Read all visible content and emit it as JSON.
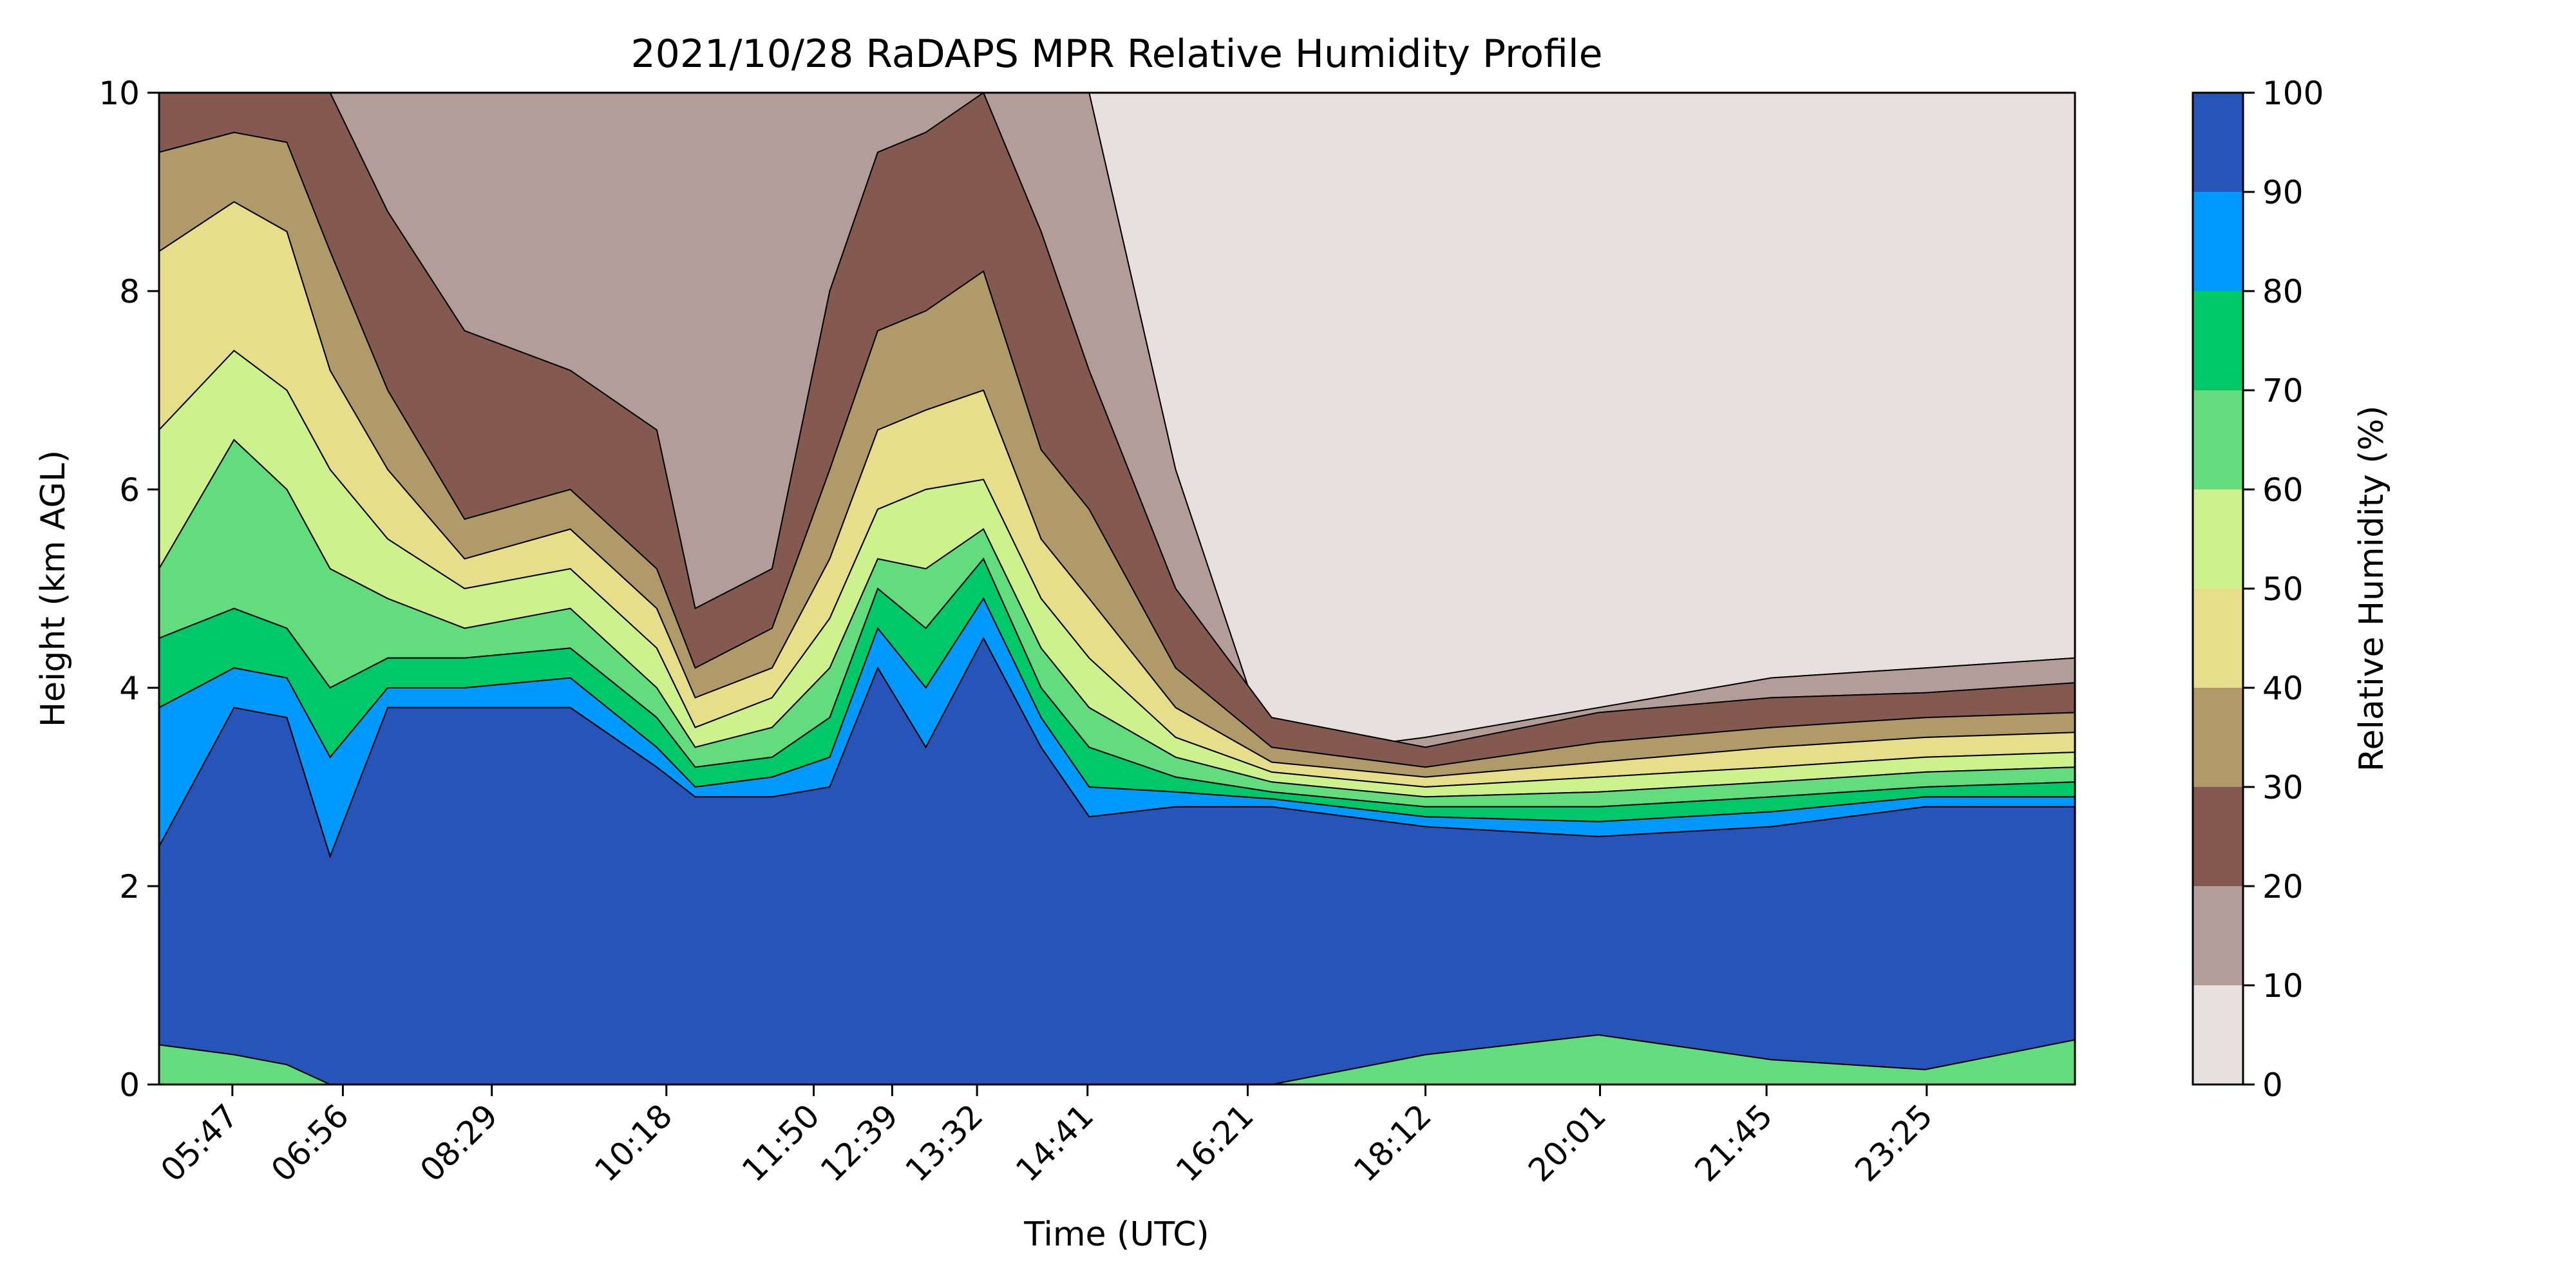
{
  "chart_data": {
    "type": "heatmap",
    "subtype": "filled-contour",
    "title": "2021/10/28 RaDAPS MPR Relative Humidity Profile",
    "xlabel": "Time (UTC)",
    "ylabel": "Height (km AGL)",
    "x_tick_labels": [
      "05:47",
      "06:56",
      "08:29",
      "10:18",
      "11:50",
      "12:39",
      "13:32",
      "14:41",
      "16:21",
      "18:12",
      "20:01",
      "21:45",
      "23:25"
    ],
    "x_tick_hours": [
      5.783,
      6.933,
      8.483,
      10.3,
      11.833,
      12.65,
      13.533,
      14.683,
      16.35,
      18.2,
      20.017,
      21.75,
      23.417
    ],
    "xlim_hours": [
      5.02,
      24.96
    ],
    "y_ticks": [
      0,
      2,
      4,
      6,
      8,
      10
    ],
    "ylim": [
      0,
      10
    ],
    "colorbar": {
      "label": "Relative Humidity (%)",
      "levels": [
        0,
        10,
        20,
        30,
        40,
        50,
        60,
        70,
        80,
        90,
        100
      ],
      "colors": [
        "#e8e0df",
        "#b39d98",
        "#84594f",
        "#b09a69",
        "#e6de8a",
        "#cdf18c",
        "#62dc7d",
        "#00c768",
        "#0099ff",
        "#2654b8"
      ]
    },
    "profiles": [
      {
        "time": 5.02,
        "boundaries": [
          0.4,
          2.4,
          3.8,
          4.5,
          5.2,
          6.6,
          8.4,
          9.4,
          10,
          10
        ]
      },
      {
        "time": 5.8,
        "boundaries": [
          0.3,
          3.8,
          4.2,
          4.8,
          6.5,
          7.4,
          8.9,
          9.6,
          10,
          10
        ]
      },
      {
        "time": 6.35,
        "boundaries": [
          0.2,
          3.7,
          4.1,
          4.6,
          6.0,
          7.0,
          8.6,
          9.5,
          10,
          10
        ]
      },
      {
        "time": 6.8,
        "boundaries": [
          0.0,
          2.3,
          3.3,
          4.0,
          5.2,
          6.2,
          7.2,
          8.4,
          10,
          10
        ]
      },
      {
        "time": 7.4,
        "boundaries": [
          0.0,
          3.8,
          4.0,
          4.3,
          4.9,
          5.5,
          6.2,
          7.0,
          8.8,
          10
        ]
      },
      {
        "time": 8.2,
        "boundaries": [
          0.0,
          3.8,
          4.0,
          4.3,
          4.6,
          5.0,
          5.3,
          5.7,
          7.6,
          10
        ]
      },
      {
        "time": 9.3,
        "boundaries": [
          0.0,
          3.8,
          4.1,
          4.4,
          4.8,
          5.2,
          5.6,
          6.0,
          7.2,
          10
        ]
      },
      {
        "time": 10.2,
        "boundaries": [
          0.0,
          3.2,
          3.4,
          3.7,
          4.0,
          4.4,
          4.8,
          5.2,
          6.6,
          10
        ]
      },
      {
        "time": 10.6,
        "boundaries": [
          0.0,
          2.9,
          3.0,
          3.2,
          3.4,
          3.6,
          3.9,
          4.2,
          4.8,
          10
        ]
      },
      {
        "time": 11.4,
        "boundaries": [
          0.0,
          2.9,
          3.1,
          3.3,
          3.6,
          3.9,
          4.2,
          4.6,
          5.2,
          10
        ]
      },
      {
        "time": 12.0,
        "boundaries": [
          0.0,
          3.0,
          3.3,
          3.7,
          4.2,
          4.7,
          5.3,
          6.2,
          8.0,
          10
        ]
      },
      {
        "time": 12.5,
        "boundaries": [
          0.0,
          4.2,
          4.6,
          5.0,
          5.3,
          5.8,
          6.6,
          7.6,
          9.4,
          10
        ]
      },
      {
        "time": 13.0,
        "boundaries": [
          0.0,
          3.4,
          4.0,
          4.6,
          5.2,
          6.0,
          6.8,
          7.8,
          9.6,
          10
        ]
      },
      {
        "time": 13.6,
        "boundaries": [
          0.0,
          4.5,
          4.9,
          5.3,
          5.6,
          6.1,
          7.0,
          8.2,
          10,
          10
        ]
      },
      {
        "time": 14.2,
        "boundaries": [
          0.0,
          3.4,
          3.7,
          4.0,
          4.4,
          4.9,
          5.5,
          6.4,
          8.6,
          10
        ]
      },
      {
        "time": 14.7,
        "boundaries": [
          0.0,
          2.7,
          3.0,
          3.4,
          3.8,
          4.3,
          4.9,
          5.8,
          7.2,
          10
        ]
      },
      {
        "time": 15.6,
        "boundaries": [
          0.0,
          2.8,
          2.95,
          3.1,
          3.3,
          3.5,
          3.8,
          4.2,
          5.0,
          6.2
        ]
      },
      {
        "time": 16.6,
        "boundaries": [
          0.0,
          2.8,
          2.88,
          2.95,
          3.05,
          3.15,
          3.25,
          3.4,
          3.7,
          3.3
        ]
      },
      {
        "time": 18.2,
        "boundaries": [
          0.3,
          2.6,
          2.7,
          2.8,
          2.9,
          3.0,
          3.1,
          3.2,
          3.4,
          3.5
        ]
      },
      {
        "time": 20.0,
        "boundaries": [
          0.5,
          2.5,
          2.65,
          2.8,
          2.95,
          3.1,
          3.25,
          3.45,
          3.75,
          3.8
        ]
      },
      {
        "time": 21.8,
        "boundaries": [
          0.25,
          2.6,
          2.75,
          2.9,
          3.05,
          3.2,
          3.4,
          3.6,
          3.9,
          4.1
        ]
      },
      {
        "time": 23.4,
        "boundaries": [
          0.15,
          2.8,
          2.9,
          3.0,
          3.15,
          3.3,
          3.5,
          3.7,
          3.95,
          4.2
        ]
      },
      {
        "time": 24.96,
        "boundaries": [
          0.45,
          2.8,
          2.9,
          3.05,
          3.2,
          3.35,
          3.55,
          3.75,
          4.05,
          4.3
        ]
      }
    ]
  }
}
